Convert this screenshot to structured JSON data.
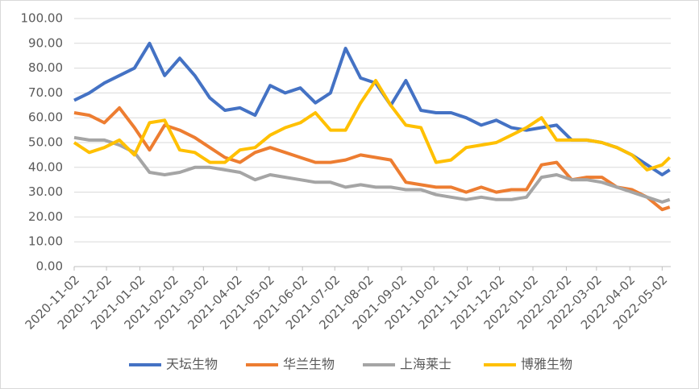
{
  "chart_data": {
    "type": "line",
    "x": [
      "2020-11-02",
      "2020-11-16",
      "2020-11-30",
      "2020-12-14",
      "2020-12-28",
      "2021-01-11",
      "2021-01-25",
      "2021-02-08",
      "2021-02-22",
      "2021-03-08",
      "2021-03-22",
      "2021-04-05",
      "2021-04-19",
      "2021-05-03",
      "2021-05-17",
      "2021-05-31",
      "2021-06-14",
      "2021-06-28",
      "2021-07-12",
      "2021-07-26",
      "2021-08-09",
      "2021-08-23",
      "2021-09-06",
      "2021-09-20",
      "2021-10-04",
      "2021-10-18",
      "2021-11-01",
      "2021-11-15",
      "2021-11-29",
      "2021-12-13",
      "2021-12-27",
      "2022-01-10",
      "2022-01-24",
      "2022-02-07",
      "2022-02-21",
      "2022-03-07",
      "2022-03-21",
      "2022-04-04",
      "2022-04-18",
      "2022-05-02",
      "2022-05-09"
    ],
    "series": [
      {
        "name": "天坛生物",
        "color": "#4472c4",
        "values": [
          67,
          70,
          74,
          77,
          80,
          90,
          77,
          84,
          77,
          68,
          63,
          64,
          61,
          73,
          70,
          72,
          66,
          70,
          88,
          76,
          74,
          65,
          75,
          63,
          62,
          62,
          60,
          57,
          59,
          56,
          55,
          56,
          57,
          51,
          51,
          50,
          48,
          45,
          41,
          37,
          39
        ]
      },
      {
        "name": "华兰生物",
        "color": "#ed7d31",
        "values": [
          62,
          61,
          58,
          64,
          56,
          47,
          57,
          55,
          52,
          48,
          44,
          42,
          46,
          48,
          46,
          44,
          42,
          42,
          43,
          45,
          44,
          43,
          34,
          33,
          32,
          32,
          30,
          32,
          30,
          31,
          31,
          41,
          42,
          35,
          36,
          36,
          32,
          31,
          28,
          23,
          24
        ]
      },
      {
        "name": "上海莱士",
        "color": "#a5a5a5",
        "values": [
          52,
          51,
          51,
          49,
          46,
          38,
          37,
          38,
          40,
          40,
          39,
          38,
          35,
          37,
          36,
          35,
          34,
          34,
          32,
          33,
          32,
          32,
          31,
          31,
          29,
          28,
          27,
          28,
          27,
          27,
          28,
          36,
          37,
          35,
          35,
          34,
          32,
          30,
          28,
          26,
          27
        ]
      },
      {
        "name": "博雅生物",
        "color": "#ffc000",
        "values": [
          50,
          46,
          48,
          51,
          45,
          58,
          59,
          47,
          46,
          42,
          42,
          47,
          48,
          53,
          56,
          58,
          62,
          55,
          55,
          66,
          75,
          65,
          57,
          56,
          42,
          43,
          48,
          49,
          50,
          53,
          56,
          60,
          51,
          51,
          51,
          50,
          48,
          45,
          39,
          41,
          44
        ]
      }
    ],
    "xlim": [
      "2020-11-02",
      "2022-05-10"
    ],
    "xticks": [
      "2020-11-02",
      "2020-12-02",
      "2021-01-02",
      "2021-02-02",
      "2021-03-02",
      "2021-04-02",
      "2021-05-02",
      "2021-06-02",
      "2021-07-02",
      "2021-08-02",
      "2021-09-02",
      "2021-10-02",
      "2021-11-02",
      "2021-12-02",
      "2022-01-02",
      "2022-02-02",
      "2022-03-02",
      "2022-04-02",
      "2022-05-02"
    ],
    "ylim": [
      0,
      100
    ],
    "yticks": [
      {
        "value": 0,
        "label": "0.00"
      },
      {
        "value": 10,
        "label": "10.00"
      },
      {
        "value": 20,
        "label": "20.00"
      },
      {
        "value": 30,
        "label": "30.00"
      },
      {
        "value": 40,
        "label": "40.00"
      },
      {
        "value": 50,
        "label": "50.00"
      },
      {
        "value": 60,
        "label": "60.00"
      },
      {
        "value": 70,
        "label": "70.00"
      },
      {
        "value": 80,
        "label": "80.00"
      },
      {
        "value": 90,
        "label": "90.00"
      },
      {
        "value": 100,
        "label": "100.00"
      }
    ],
    "grid": true,
    "legend": "bottom"
  }
}
